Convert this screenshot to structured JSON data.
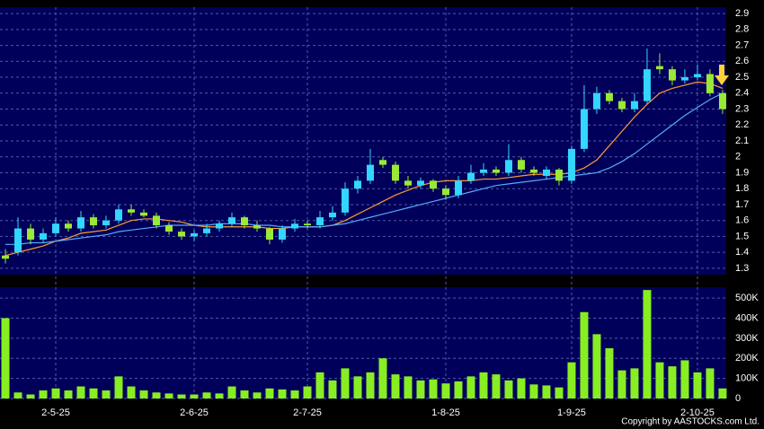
{
  "chart_data": [
    {
      "type": "candlestick",
      "xlim": [
        -0.43,
        57.29
      ],
      "ylim": [
        1.26,
        2.94
      ],
      "yticks": [
        1.3,
        1.4,
        1.5,
        1.6,
        1.7,
        1.8,
        1.9,
        2,
        2.1,
        2.2,
        2.3,
        2.4,
        2.5,
        2.6,
        2.7,
        2.8,
        2.9
      ],
      "xticks": [
        {
          "value": 4,
          "label": "2-5-25"
        },
        {
          "value": 15,
          "label": "2-6-25"
        },
        {
          "value": 24,
          "label": "2-7-25"
        },
        {
          "value": 35,
          "label": "1-8-25"
        },
        {
          "value": 45,
          "label": "1-9-25"
        },
        {
          "value": 55,
          "label": "2-10-25"
        }
      ],
      "grid": true,
      "up_color": "#33d6ff",
      "down_color": "#9be836",
      "open": [
        1.38,
        1.4,
        1.55,
        1.48,
        1.52,
        1.58,
        1.55,
        1.62,
        1.57,
        1.6,
        1.67,
        1.65,
        1.63,
        1.57,
        1.53,
        1.5,
        1.52,
        1.55,
        1.58,
        1.62,
        1.57,
        1.55,
        1.48,
        1.55,
        1.58,
        1.57,
        1.62,
        1.65,
        1.8,
        1.85,
        1.98,
        1.95,
        1.85,
        1.82,
        1.85,
        1.8,
        1.76,
        1.85,
        1.9,
        1.92,
        1.9,
        1.98,
        1.92,
        1.88,
        1.92,
        1.85,
        2.05,
        2.3,
        2.4,
        2.35,
        2.3,
        2.35,
        2.57,
        2.55,
        2.48,
        2.5,
        2.52,
        2.4
      ],
      "high": [
        1.42,
        1.62,
        1.58,
        1.55,
        1.62,
        1.6,
        1.66,
        1.64,
        1.63,
        1.7,
        1.7,
        1.67,
        1.65,
        1.59,
        1.55,
        1.54,
        1.58,
        1.6,
        1.65,
        1.63,
        1.6,
        1.56,
        1.57,
        1.61,
        1.6,
        1.66,
        1.69,
        1.84,
        1.88,
        2.05,
        2.0,
        1.97,
        1.88,
        1.87,
        1.86,
        1.82,
        1.88,
        1.95,
        1.96,
        1.94,
        2.08,
        2.0,
        1.94,
        1.94,
        1.93,
        2.07,
        2.45,
        2.44,
        2.42,
        2.37,
        2.4,
        2.68,
        2.65,
        2.57,
        2.55,
        2.58,
        2.55,
        2.42
      ],
      "low": [
        1.33,
        1.38,
        1.45,
        1.46,
        1.5,
        1.53,
        1.53,
        1.55,
        1.55,
        1.58,
        1.63,
        1.62,
        1.55,
        1.51,
        1.48,
        1.47,
        1.5,
        1.53,
        1.56,
        1.55,
        1.53,
        1.45,
        1.46,
        1.53,
        1.55,
        1.55,
        1.6,
        1.63,
        1.77,
        1.83,
        1.93,
        1.83,
        1.8,
        1.8,
        1.78,
        1.73,
        1.74,
        1.83,
        1.88,
        1.88,
        1.88,
        1.9,
        1.88,
        1.86,
        1.82,
        1.83,
        2.03,
        2.27,
        2.33,
        2.28,
        2.28,
        2.33,
        2.52,
        2.45,
        2.46,
        2.48,
        2.38,
        2.27
      ],
      "close": [
        1.36,
        1.55,
        1.48,
        1.52,
        1.58,
        1.55,
        1.62,
        1.57,
        1.6,
        1.67,
        1.65,
        1.63,
        1.57,
        1.53,
        1.5,
        1.52,
        1.55,
        1.58,
        1.62,
        1.57,
        1.55,
        1.48,
        1.55,
        1.58,
        1.57,
        1.62,
        1.65,
        1.8,
        1.85,
        1.95,
        1.95,
        1.85,
        1.82,
        1.85,
        1.8,
        1.76,
        1.85,
        1.9,
        1.92,
        1.9,
        1.98,
        1.92,
        1.9,
        1.92,
        1.85,
        2.05,
        2.3,
        2.4,
        2.35,
        2.3,
        2.35,
        2.55,
        2.55,
        2.48,
        2.5,
        2.52,
        2.4,
        2.3
      ],
      "lines": [
        {
          "color": "#ff9933",
          "values": [
            1.38,
            1.4,
            1.42,
            1.44,
            1.47,
            1.49,
            1.52,
            1.53,
            1.54,
            1.57,
            1.6,
            1.61,
            1.61,
            1.6,
            1.59,
            1.57,
            1.56,
            1.56,
            1.56,
            1.56,
            1.56,
            1.55,
            1.55,
            1.56,
            1.56,
            1.56,
            1.57,
            1.6,
            1.64,
            1.68,
            1.72,
            1.76,
            1.79,
            1.82,
            1.84,
            1.85,
            1.85,
            1.85,
            1.86,
            1.86,
            1.87,
            1.88,
            1.89,
            1.89,
            1.89,
            1.9,
            1.93,
            1.98,
            2.07,
            2.16,
            2.25,
            2.33,
            2.4,
            2.43,
            2.45,
            2.47,
            2.46,
            2.43
          ]
        },
        {
          "color": "#55aaff",
          "values": [
            1.45,
            1.45,
            1.46,
            1.46,
            1.47,
            1.48,
            1.49,
            1.5,
            1.51,
            1.53,
            1.54,
            1.55,
            1.56,
            1.57,
            1.57,
            1.57,
            1.57,
            1.58,
            1.58,
            1.58,
            1.57,
            1.57,
            1.56,
            1.56,
            1.56,
            1.56,
            1.57,
            1.58,
            1.6,
            1.62,
            1.64,
            1.66,
            1.68,
            1.7,
            1.72,
            1.74,
            1.76,
            1.78,
            1.8,
            1.82,
            1.83,
            1.84,
            1.85,
            1.86,
            1.87,
            1.88,
            1.89,
            1.9,
            1.93,
            1.97,
            2.02,
            2.08,
            2.14,
            2.2,
            2.26,
            2.31,
            2.36,
            2.4
          ]
        }
      ]
    },
    {
      "type": "bar",
      "xlim": [
        -0.43,
        57.29
      ],
      "ylim": [
        0,
        554000
      ],
      "grid": true,
      "color": "#88ee22",
      "yticks": [
        0,
        {
          "value": 100000,
          "label": "100K"
        },
        {
          "value": 200000,
          "label": "200K"
        },
        {
          "value": 300000,
          "label": "300K"
        },
        {
          "value": 400000,
          "label": "400K"
        },
        {
          "value": 500000,
          "label": "500K"
        }
      ],
      "values": [
        400000,
        30000,
        20000,
        40000,
        50000,
        40000,
        60000,
        50000,
        40000,
        110000,
        60000,
        40000,
        30000,
        25000,
        20000,
        20000,
        30000,
        25000,
        60000,
        40000,
        30000,
        50000,
        45000,
        40000,
        60000,
        130000,
        90000,
        150000,
        110000,
        130000,
        200000,
        120000,
        110000,
        90000,
        95000,
        75000,
        85000,
        110000,
        130000,
        120000,
        90000,
        100000,
        70000,
        65000,
        55000,
        180000,
        430000,
        320000,
        250000,
        140000,
        150000,
        540000,
        180000,
        160000,
        190000,
        130000,
        150000,
        50000
      ]
    }
  ],
  "copyright": "Copyright by AASTOCKS.com Ltd."
}
